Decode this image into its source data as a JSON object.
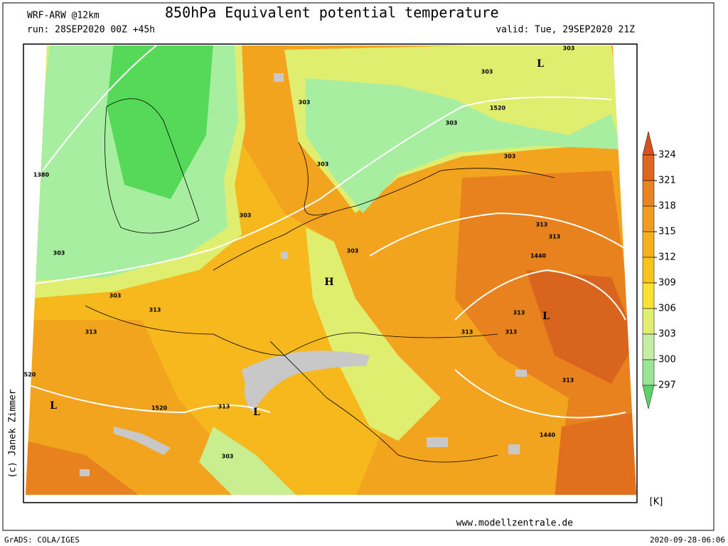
{
  "header": {
    "model": "WRF-ARW @12km",
    "title": "850hPa Equivalent potential temperature",
    "run": "run: 28SEP2020 00Z +45h",
    "valid": "valid: Tue, 29SEP2020 21Z"
  },
  "colorbar": {
    "ticks": [
      324,
      321,
      318,
      315,
      312,
      309,
      306,
      303,
      300,
      297
    ],
    "unit": "[K]",
    "colors": [
      "#d8501c",
      "#e0661e",
      "#ea8420",
      "#f29c1e",
      "#f6b01a",
      "#f8c41a",
      "#fbe130",
      "#e2ee70",
      "#c4eea0",
      "#98e696",
      "#5cd468"
    ]
  },
  "map_labels": [
    "L",
    "303",
    "303",
    "1520",
    "303",
    "303",
    "303",
    "303",
    "1380",
    "303",
    "303",
    "303",
    "H",
    "313",
    "313",
    "1440",
    "303",
    "313",
    "313",
    "L",
    "313",
    "313",
    "313",
    "313",
    "520",
    "L",
    "1520",
    "313",
    "L",
    "303",
    "1440"
  ],
  "credit": "(c) Janek Zimmer",
  "website": "www.modellzentrale.de",
  "footer_left": "GrADS: COLA/IGES",
  "footer_right": "2020-09-28-06:06"
}
